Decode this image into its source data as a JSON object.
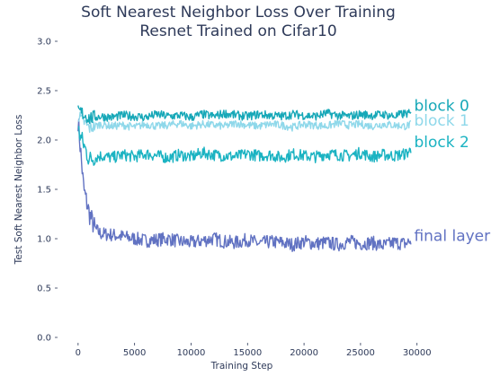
{
  "chart_data": {
    "type": "line",
    "title": "Soft Nearest Neighbor Loss Over Training",
    "subtitle": "Resnet Trained on Cifar10",
    "xlabel": "Training Step",
    "ylabel": "Test Soft Nearest Neighbor Loss",
    "xlim": [
      -1500,
      30500
    ],
    "ylim": [
      0.0,
      3.0
    ],
    "xticks": [
      0,
      5000,
      10000,
      15000,
      20000,
      25000,
      30000
    ],
    "yticks": [
      0.0,
      0.5,
      1.0,
      1.5,
      2.0,
      2.5,
      3.0
    ],
    "xtick_labels": [
      "0",
      "5000",
      "10000",
      "15000",
      "20000",
      "25000",
      "30000"
    ],
    "ytick_labels": [
      "0.0",
      "0.5",
      "1.0",
      "1.5",
      "2.0",
      "2.5",
      "3.0"
    ],
    "grid": false,
    "legend": "inline labels at right end of each series",
    "series": [
      {
        "name": "block 0",
        "color": "#17a8b8",
        "x": [
          0,
          1000,
          2000,
          3000,
          4000,
          5000,
          6000,
          7000,
          8000,
          9000,
          10000,
          11000,
          12000,
          13000,
          14000,
          15000,
          16000,
          17000,
          18000,
          19000,
          20000,
          21000,
          22000,
          23000,
          24000,
          25000,
          26000,
          27000,
          28000,
          29000,
          29500
        ],
        "y": [
          2.3,
          2.22,
          2.24,
          2.23,
          2.25,
          2.24,
          2.23,
          2.26,
          2.24,
          2.25,
          2.23,
          2.26,
          2.24,
          2.27,
          2.25,
          2.24,
          2.26,
          2.25,
          2.24,
          2.26,
          2.25,
          2.24,
          2.27,
          2.25,
          2.24,
          2.26,
          2.25,
          2.26,
          2.24,
          2.27,
          2.26
        ]
      },
      {
        "name": "block 1",
        "color": "#8fd8ea",
        "x": [
          0,
          1000,
          2000,
          3000,
          4000,
          5000,
          6000,
          7000,
          8000,
          9000,
          10000,
          11000,
          12000,
          13000,
          14000,
          15000,
          16000,
          17000,
          18000,
          19000,
          20000,
          21000,
          22000,
          23000,
          24000,
          25000,
          26000,
          27000,
          28000,
          29000,
          29500
        ],
        "y": [
          2.25,
          2.12,
          2.16,
          2.14,
          2.15,
          2.13,
          2.16,
          2.14,
          2.15,
          2.17,
          2.14,
          2.16,
          2.15,
          2.14,
          2.17,
          2.15,
          2.14,
          2.16,
          2.15,
          2.13,
          2.16,
          2.15,
          2.14,
          2.17,
          2.15,
          2.16,
          2.14,
          2.16,
          2.15,
          2.14,
          2.16
        ]
      },
      {
        "name": "block 2",
        "color": "#1bb3c2",
        "x": [
          0,
          1000,
          2000,
          3000,
          4000,
          5000,
          6000,
          7000,
          8000,
          9000,
          10000,
          11000,
          12000,
          13000,
          14000,
          15000,
          16000,
          17000,
          18000,
          19000,
          20000,
          21000,
          22000,
          23000,
          24000,
          25000,
          26000,
          27000,
          28000,
          29000,
          29500
        ],
        "y": [
          2.1,
          1.8,
          1.84,
          1.82,
          1.85,
          1.83,
          1.86,
          1.84,
          1.82,
          1.85,
          1.83,
          1.87,
          1.85,
          1.84,
          1.83,
          1.86,
          1.84,
          1.85,
          1.82,
          1.86,
          1.84,
          1.83,
          1.86,
          1.85,
          1.84,
          1.87,
          1.83,
          1.85,
          1.84,
          1.86,
          1.9
        ]
      },
      {
        "name": "final layer",
        "color": "#6172c2",
        "x": [
          0,
          500,
          1000,
          1500,
          2000,
          3000,
          4000,
          5000,
          6000,
          7000,
          8000,
          9000,
          10000,
          11000,
          12000,
          13000,
          14000,
          15000,
          16000,
          17000,
          18000,
          19000,
          20000,
          21000,
          22000,
          23000,
          24000,
          25000,
          26000,
          27000,
          28000,
          29000,
          29500
        ],
        "y": [
          2.2,
          1.5,
          1.25,
          1.1,
          1.05,
          1.04,
          1.02,
          1.0,
          0.98,
          0.99,
          1.0,
          0.97,
          0.96,
          0.98,
          1.0,
          0.97,
          0.96,
          0.99,
          0.95,
          0.97,
          0.96,
          0.94,
          0.97,
          0.95,
          0.96,
          0.94,
          0.97,
          0.95,
          0.96,
          0.93,
          0.96,
          0.95,
          0.98
        ]
      }
    ]
  }
}
